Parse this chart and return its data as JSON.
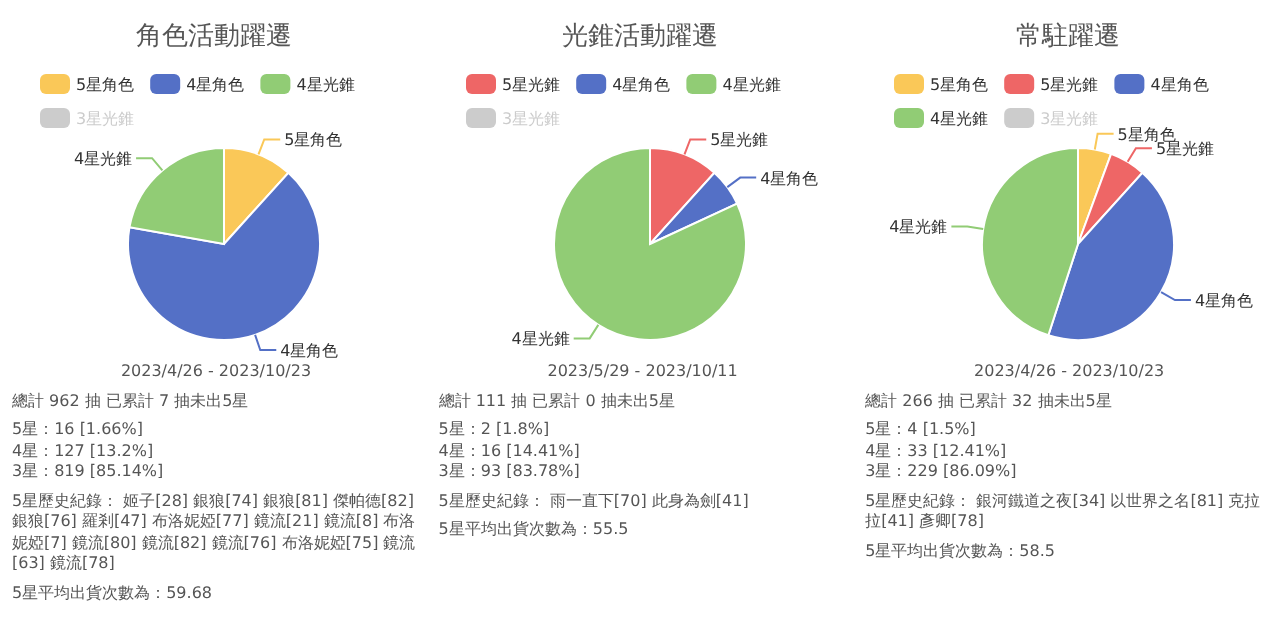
{
  "chart_data": [
    {
      "type": "pie",
      "title": "角色活動躍遷",
      "legend": "top",
      "categories": [
        "5星角色",
        "4星角色",
        "4星光錐",
        "3星光錐"
      ],
      "values": [
        11.7,
        66.1,
        22.2,
        null
      ],
      "colors": [
        "#fac858",
        "#5470c6",
        "#91cc75",
        "#cccccc"
      ],
      "annotations": [
        "2023/4/26 - 2023/10/23",
        "總計 962 抽 已累計 7 抽未出5星",
        "5星：16 [1.66%]",
        "4星：127 [13.2%]",
        "3星：819 [85.14%]",
        "5星歷史紀錄： 姬子[28] 銀狼[74] 銀狼[81] 傑帕德[82] 銀狼[76] 羅剎[47] 布洛妮婭[77] 鏡流[21] 鏡流[8] 布洛妮婭[7] 鏡流[80] 鏡流[82] 鏡流[76] 布洛妮婭[75] 鏡流[63] 鏡流[78]",
        "5星平均出貨次數為：59.68"
      ]
    },
    {
      "type": "pie",
      "title": "光錐活動躍遷",
      "legend": "top",
      "categories": [
        "5星光錐",
        "4星角色",
        "4星光錐",
        "3星光錐"
      ],
      "values": [
        11.7,
        6.4,
        81.9,
        null
      ],
      "colors": [
        "#ee6666",
        "#5470c6",
        "#91cc75",
        "#cccccc"
      ],
      "annotations": [
        "2023/5/29 - 2023/10/11",
        "總計 111 抽 已累計 0 抽未出5星",
        "5星：2 [1.8%]",
        "4星：16 [14.41%]",
        "3星：93 [83.78%]",
        "5星歷史紀錄： 雨一直下[70] 此身為劍[41]",
        "5星平均出貨次數為：55.5"
      ]
    },
    {
      "type": "pie",
      "title": "常駐躍遷",
      "legend": "top",
      "categories": [
        "5星角色",
        "5星光錐",
        "4星角色",
        "4星光錐",
        "3星光錐"
      ],
      "values": [
        5.6,
        6.1,
        43.3,
        45.0,
        null
      ],
      "colors": [
        "#fac858",
        "#ee6666",
        "#5470c6",
        "#91cc75",
        "#cccccc"
      ],
      "annotations": [
        "2023/4/26 - 2023/10/23",
        "總計 266 抽 已累計 32 抽未出5星",
        "5星：4 [1.5%]",
        "4星：33 [12.41%]",
        "3星：229 [86.09%]",
        "5星歷史紀錄： 銀河鐵道之夜[34] 以世界之名[81] 克拉拉[41] 彥卿[78]",
        "5星平均出貨次數為：58.5"
      ]
    }
  ]
}
